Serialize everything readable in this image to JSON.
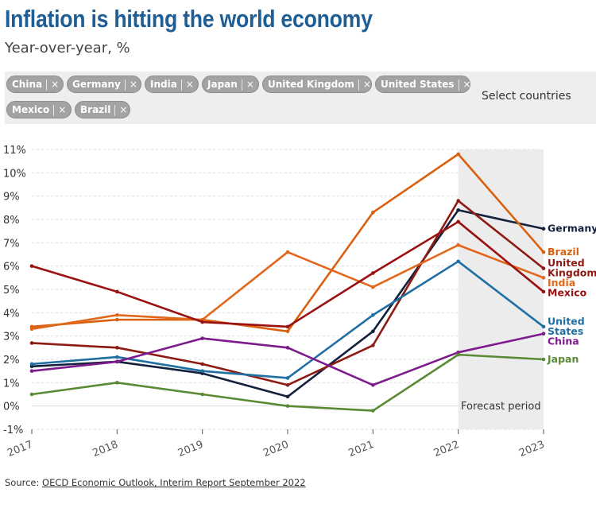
{
  "title": "Inflation is hitting the world economy",
  "subtitle": "Year-over-year, %",
  "selector": {
    "chips": [
      "China",
      "Germany",
      "India",
      "Japan",
      "United Kingdom",
      "United States",
      "Mexico",
      "Brazil"
    ],
    "remove_glyph": "×",
    "label": "Select countries"
  },
  "source": {
    "prefix": "Source: ",
    "link_text": "OECD Economic Outlook, Interim Report September 2022"
  },
  "chart_data": {
    "type": "line",
    "x": [
      2017,
      2018,
      2019,
      2020,
      2021,
      2022,
      2023
    ],
    "ylim": [
      -1,
      11
    ],
    "yticks": [
      -1,
      0,
      1,
      2,
      3,
      4,
      5,
      6,
      7,
      8,
      9,
      10,
      11
    ],
    "ytick_suffix": "%",
    "forecast_label": "Forecast period",
    "forecast_range": [
      2022,
      2023
    ],
    "series": [
      {
        "name": "Germany",
        "label_lines": [
          "Germany"
        ],
        "color": "#14213d",
        "values": [
          1.7,
          1.9,
          1.4,
          0.4,
          3.2,
          8.4,
          7.6
        ]
      },
      {
        "name": "Brazil",
        "label_lines": [
          "Brazil"
        ],
        "color": "#d9600f",
        "values": [
          3.4,
          3.7,
          3.7,
          3.2,
          8.3,
          10.8,
          6.6
        ]
      },
      {
        "name": "United Kingdom",
        "label_lines": [
          "United",
          "Kingdom"
        ],
        "color": "#8e1a14",
        "values": [
          2.7,
          2.5,
          1.8,
          0.9,
          2.6,
          8.8,
          5.9
        ]
      },
      {
        "name": "India",
        "label_lines": [
          "India"
        ],
        "color": "#e2671b",
        "values": [
          3.3,
          3.9,
          3.7,
          6.6,
          5.1,
          6.9,
          5.5
        ]
      },
      {
        "name": "Mexico",
        "label_lines": [
          "Mexico"
        ],
        "color": "#9b1010",
        "values": [
          6.0,
          4.9,
          3.6,
          3.4,
          5.7,
          7.9,
          4.9
        ]
      },
      {
        "name": "United States",
        "label_lines": [
          "United",
          "States"
        ],
        "color": "#1f6fa3",
        "values": [
          1.8,
          2.1,
          1.5,
          1.2,
          3.9,
          6.2,
          3.4
        ]
      },
      {
        "name": "China",
        "label_lines": [
          "China"
        ],
        "color": "#7d1a8c",
        "values": [
          1.5,
          1.9,
          2.9,
          2.5,
          0.9,
          2.3,
          3.1
        ]
      },
      {
        "name": "Japan",
        "label_lines": [
          "Japan"
        ],
        "color": "#5a8a34",
        "values": [
          0.5,
          1.0,
          0.5,
          0.0,
          -0.2,
          2.2,
          2.0
        ]
      }
    ]
  }
}
